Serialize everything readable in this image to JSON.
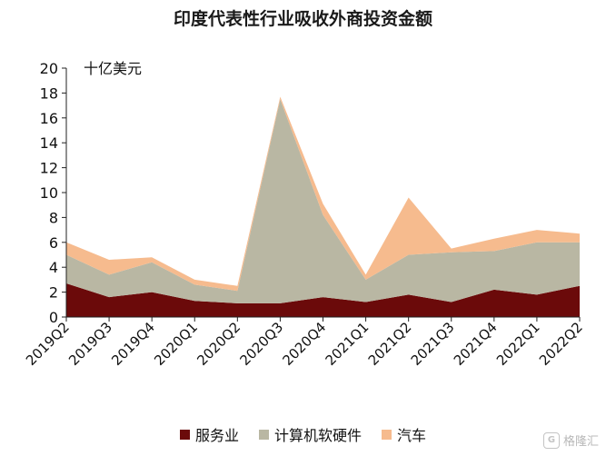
{
  "chart_data": {
    "type": "area",
    "title": "印度代表性行业吸收外商投资金额",
    "unit_label": "十亿美元",
    "categories": [
      "2019Q2",
      "2019Q3",
      "2019Q4",
      "2020Q1",
      "2020Q2",
      "2020Q3",
      "2020Q4",
      "2021Q1",
      "2021Q2",
      "2021Q3",
      "2021Q4",
      "2022Q1",
      "2022Q2"
    ],
    "ylim": [
      0,
      20
    ],
    "yticks": [
      0,
      2,
      4,
      6,
      8,
      10,
      12,
      14,
      16,
      18,
      20
    ],
    "stacked": true,
    "legend_position": "bottom",
    "series": [
      {
        "name": "服务业",
        "color": "#6b0a0a",
        "values": [
          2.7,
          1.6,
          2.0,
          1.3,
          1.1,
          1.1,
          1.6,
          1.2,
          1.8,
          1.2,
          2.2,
          1.8,
          2.5
        ]
      },
      {
        "name": "计算机软硬件",
        "color": "#b9b7a3",
        "values": [
          2.3,
          1.8,
          2.4,
          1.3,
          1.0,
          16.4,
          6.6,
          1.8,
          3.2,
          4.0,
          3.1,
          4.2,
          3.5
        ]
      },
      {
        "name": "汽车",
        "color": "#f6bb8e",
        "values": [
          1.0,
          1.2,
          0.4,
          0.4,
          0.4,
          0.2,
          0.9,
          0.4,
          4.6,
          0.3,
          1.0,
          1.0,
          0.7
        ]
      }
    ]
  },
  "watermark": {
    "text": "格隆汇",
    "logo": "G"
  }
}
